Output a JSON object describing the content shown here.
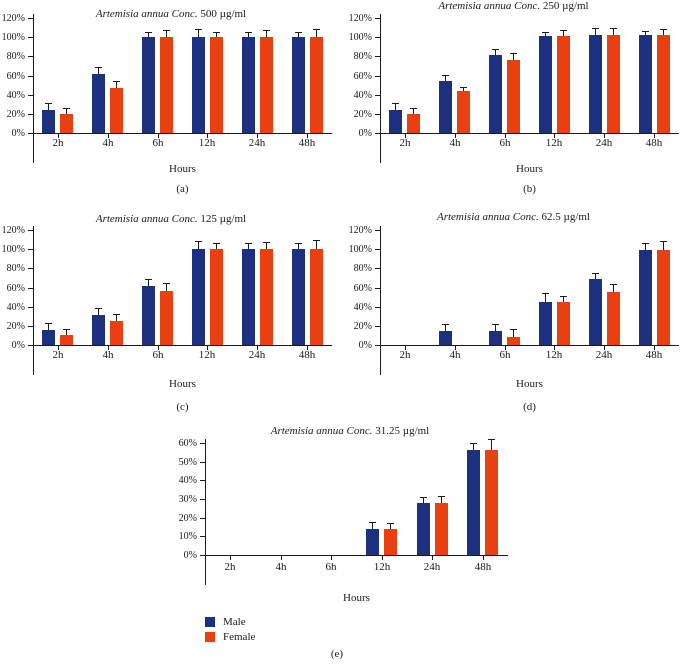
{
  "figure_caption_letters": [
    "(a)",
    "(b)",
    "(c)",
    "(d)",
    "(e)"
  ],
  "legend": {
    "items": [
      {
        "label": "Male",
        "color": "#1d3080"
      },
      {
        "label": "Female",
        "color": "#e84011"
      }
    ]
  },
  "colors": {
    "male_bar": "#1d3080",
    "female_bar": "#e84011",
    "axis": "#1a1a1a",
    "error_bar": "#1a1a1a",
    "background": "#ffffff"
  },
  "chart_data": [
    {
      "type": "bar",
      "title": "Artemisia annua Conc. 500 µg/ml",
      "title_italic": "Artemisia annua Conc.",
      "title_rest": "500 µg/ml",
      "letter": "(a)",
      "xlabel": "Hours",
      "categories": [
        "2h",
        "4h",
        "6h",
        "12h",
        "24h",
        "48h"
      ],
      "ylim": [
        0,
        120
      ],
      "ytick_step": 20,
      "ytick_suffix": "%",
      "grid": false,
      "series": [
        {
          "name": "Male",
          "color": "#1d3080",
          "values": [
            24,
            62,
            100,
            100,
            100,
            100
          ],
          "errors": [
            7,
            7,
            5,
            8,
            5,
            5
          ]
        },
        {
          "name": "Female",
          "color": "#e84011",
          "values": [
            20,
            47,
            100,
            100,
            100,
            100
          ],
          "errors": [
            6,
            7,
            7,
            5,
            7,
            8
          ]
        }
      ]
    },
    {
      "type": "bar",
      "title": "Artemisia annua Conc. 250 µg/ml",
      "title_italic": "Artemisia annua Conc.",
      "title_rest": "250 µg/ml",
      "letter": "(b)",
      "xlabel": "Hours",
      "categories": [
        "2h",
        "4h",
        "6h",
        "12h",
        "24h",
        "48h"
      ],
      "ylim": [
        0,
        120
      ],
      "ytick_step": 20,
      "ytick_suffix": "%",
      "grid": false,
      "series": [
        {
          "name": "Male",
          "color": "#1d3080",
          "values": [
            24,
            54,
            81,
            101,
            102,
            102
          ],
          "errors": [
            7,
            6,
            6,
            4,
            7,
            4
          ]
        },
        {
          "name": "Female",
          "color": "#e84011",
          "values": [
            20,
            44,
            76,
            101,
            102,
            102
          ],
          "errors": [
            6,
            4,
            7,
            6,
            7,
            6
          ]
        }
      ]
    },
    {
      "type": "bar",
      "title": "Artemisia annua Conc. 125 µg/ml",
      "title_italic": "Artemisia annua Conc.",
      "title_rest": "125 µg/ml",
      "letter": "(c)",
      "xlabel": "Hours",
      "categories": [
        "2h",
        "4h",
        "6h",
        "12h",
        "24h",
        "48h"
      ],
      "ylim": [
        0,
        120
      ],
      "ytick_step": 20,
      "ytick_suffix": "%",
      "grid": false,
      "series": [
        {
          "name": "Male",
          "color": "#1d3080",
          "values": [
            16,
            31,
            62,
            100,
            100,
            100
          ],
          "errors": [
            7,
            7,
            7,
            8,
            6,
            6
          ]
        },
        {
          "name": "Female",
          "color": "#e84011",
          "values": [
            10,
            25,
            56,
            100,
            100,
            100
          ],
          "errors": [
            6,
            7,
            8,
            6,
            7,
            9
          ]
        }
      ]
    },
    {
      "type": "bar",
      "title": "Artemisia annua Conc. 62.5 µg/ml",
      "title_italic": "Artemisia annua Conc.",
      "title_rest": "62.5 µg/ml",
      "letter": "(d)",
      "xlabel": "Hours",
      "categories": [
        "2h",
        "4h",
        "6h",
        "12h",
        "24h",
        "48h"
      ],
      "ylim": [
        0,
        120
      ],
      "ytick_step": 20,
      "ytick_suffix": "%",
      "grid": false,
      "series": [
        {
          "name": "Male",
          "color": "#1d3080",
          "values": [
            0,
            15,
            15,
            45,
            69,
            99
          ],
          "errors": [
            0,
            7,
            7,
            9,
            6,
            7
          ]
        },
        {
          "name": "Female",
          "color": "#e84011",
          "values": [
            0,
            0,
            8,
            45,
            55,
            99
          ],
          "errors": [
            0,
            0,
            8,
            6,
            8,
            9
          ]
        }
      ]
    },
    {
      "type": "bar",
      "title": "Artemisia annua Conc. 31.25 µg/ml",
      "title_italic": "Artemisia annua Conc.",
      "title_rest": "31.25 µg/ml",
      "letter": "(e)",
      "xlabel": "Hours",
      "categories": [
        "2h",
        "4h",
        "6h",
        "12h",
        "24h",
        "48h"
      ],
      "ylim": [
        0,
        60
      ],
      "ytick_step": 10,
      "ytick_suffix": "%",
      "grid": false,
      "series": [
        {
          "name": "Male",
          "color": "#1d3080",
          "values": [
            0,
            0,
            0,
            14,
            28,
            56
          ],
          "errors": [
            0,
            0,
            0,
            4,
            3,
            4
          ]
        },
        {
          "name": "Female",
          "color": "#e84011",
          "values": [
            0,
            0,
            0,
            14,
            28,
            56
          ],
          "errors": [
            0,
            0,
            0,
            3,
            4,
            6
          ]
        }
      ]
    }
  ]
}
